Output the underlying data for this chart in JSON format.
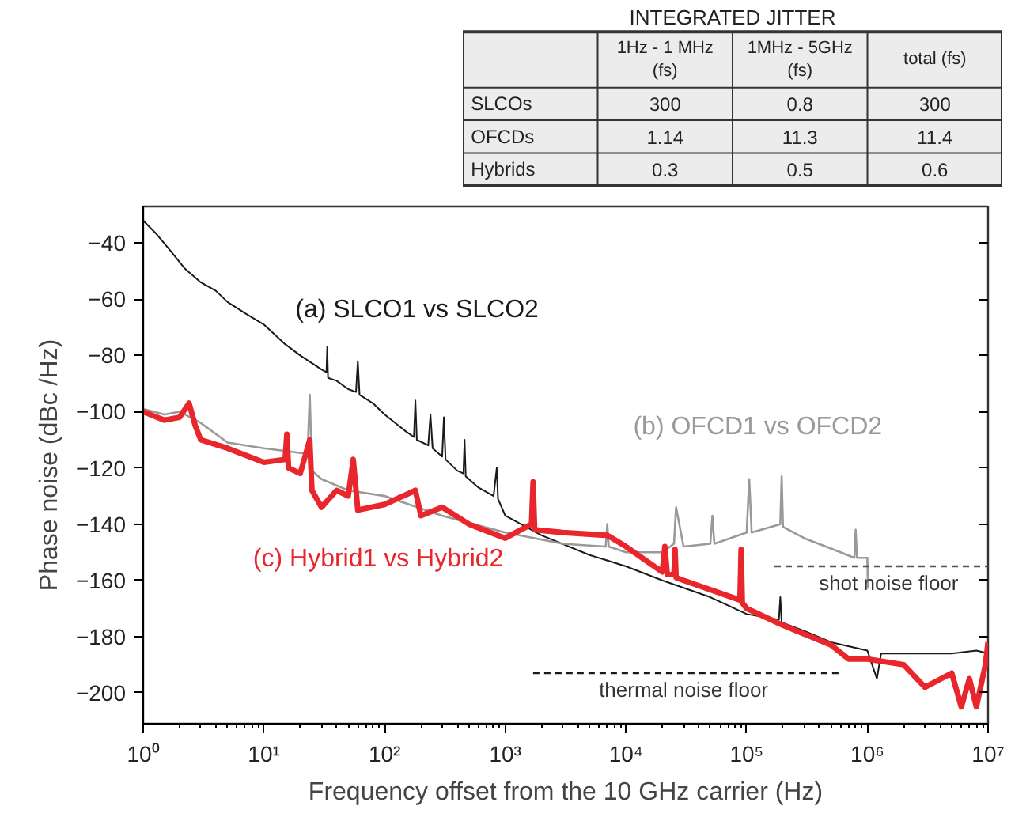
{
  "chart_data": [
    {
      "type": "line",
      "xlabel": "Frequency offset from the 10 GHz carrier (Hz)",
      "ylabel": "Phase noise (dBc /Hz)",
      "log": "x",
      "grid": false,
      "xlim": [
        1,
        10000000
      ],
      "ylim": [
        -211,
        -27
      ],
      "xticks": [
        {
          "value": 1,
          "label": "10⁰"
        },
        {
          "value": 10,
          "label": "10¹"
        },
        {
          "value": 100,
          "label": "10²"
        },
        {
          "value": 1000,
          "label": "10³"
        },
        {
          "value": 10000,
          "label": "10⁴"
        },
        {
          "value": 100000,
          "label": "10⁵"
        },
        {
          "value": 1000000,
          "label": "10⁶"
        },
        {
          "value": 10000000,
          "label": "10⁷"
        }
      ],
      "yticks": [
        -200,
        -180,
        -160,
        -140,
        -120,
        -100,
        -80,
        -60,
        -40
      ],
      "series": [
        {
          "name": "(a) SLCO1 vs SLCO2",
          "color": "#1a1a1a",
          "x": [
            1,
            1.3,
            1.7,
            2.2,
            3,
            4,
            5,
            7,
            10,
            15,
            20,
            30,
            33,
            33.5,
            34,
            40,
            50,
            58,
            60,
            62,
            80,
            100,
            150,
            175,
            180,
            185,
            230,
            240,
            250,
            300,
            310,
            320,
            400,
            450,
            460,
            470,
            600,
            800,
            850,
            870,
            1000,
            2000,
            5000,
            10000,
            20000,
            50000,
            100000,
            185000,
            190000,
            195000,
            300000,
            500000,
            1000000,
            1200000,
            1300000,
            1500000,
            2000000,
            3000000,
            5000000,
            8000000,
            10000000
          ],
          "values": [
            -32,
            -37,
            -43,
            -49,
            -54,
            -57,
            -61,
            -65,
            -69,
            -76,
            -80,
            -85,
            -86,
            -77,
            -88,
            -89,
            -92,
            -93,
            -82,
            -94,
            -97,
            -101,
            -107,
            -109,
            -96,
            -110,
            -112,
            -101,
            -113,
            -116,
            -102,
            -117,
            -121,
            -122,
            -110,
            -123,
            -127,
            -130,
            -120,
            -131,
            -137,
            -144,
            -151,
            -155,
            -160,
            -166,
            -172,
            -174,
            -166,
            -175,
            -178,
            -182,
            -185,
            -195,
            -186,
            -186,
            -186,
            -186,
            -186,
            -185,
            -186
          ]
        },
        {
          "name": "(b) OFCD1 vs OFCD2",
          "color": "#999999",
          "x": [
            1,
            1.5,
            2,
            3,
            5,
            10,
            23,
            24,
            25,
            30,
            50,
            100,
            300,
            1000,
            3000,
            6800,
            7000,
            7200,
            10000,
            20000,
            25000,
            26000,
            30000,
            50000,
            52000,
            54000,
            100000,
            105000,
            110000,
            190000,
            195000,
            200000,
            300000,
            600000,
            780000,
            800000,
            820000,
            1000000,
            1010000
          ],
          "values": [
            -99,
            -101,
            -100,
            -104,
            -111,
            -113,
            -115,
            -94,
            -121,
            -124,
            -128,
            -130,
            -137,
            -143,
            -147,
            -148,
            -140,
            -148,
            -150,
            -150,
            -147,
            -134,
            -148,
            -147,
            -137,
            -147,
            -143,
            -124,
            -143,
            -140,
            -123,
            -141,
            -145,
            -150,
            -152,
            -142,
            -152,
            -152,
            -163
          ]
        },
        {
          "name": "(c) Hybrid1 vs Hybrid2",
          "color": "#e8262b",
          "x": [
            1,
            1.5,
            2,
            2.4,
            2.7,
            3,
            5,
            10,
            15,
            15.5,
            16,
            20,
            24,
            25,
            30,
            40,
            50,
            55,
            60,
            100,
            180,
            200,
            300,
            500,
            1000,
            1650,
            1700,
            1750,
            3000,
            7000,
            10000,
            20000,
            21000,
            22000,
            25000,
            25500,
            26000,
            30000,
            88000,
            90000,
            92000,
            100000,
            200000,
            500000,
            700000,
            1000000,
            2000000,
            3000000,
            5000000,
            6000000,
            7000000,
            8000000,
            9500000,
            10000000
          ],
          "values": [
            -100,
            -103,
            -102,
            -97,
            -105,
            -110,
            -113,
            -118,
            -117,
            -108,
            -120,
            -122,
            -110,
            -128,
            -134,
            -128,
            -130,
            -117,
            -135,
            -133,
            -128,
            -137,
            -134,
            -140,
            -145,
            -140,
            -125,
            -142,
            -143,
            -144,
            -148,
            -157,
            -148,
            -158,
            -158,
            -149,
            -159,
            -160,
            -167,
            -149,
            -168,
            -170,
            -176,
            -183,
            -188,
            -188,
            -190,
            -198,
            -193,
            -205,
            -195,
            -205,
            -190,
            -182
          ]
        },
        {
          "color": "#555555",
          "line_style": "dashed",
          "x": [
            170000,
            10000000
          ],
          "values": [
            -155,
            -155
          ]
        },
        {
          "color": "#1a1a1a",
          "line_style": "dashed",
          "x": [
            1700,
            600000
          ],
          "values": [
            -193,
            -193
          ]
        }
      ],
      "annotations": [
        {
          "text": "shot noise floor",
          "x": 1500000,
          "y": -155
        },
        {
          "text": "thermal noise floor",
          "x": 30000,
          "y": -193
        }
      ]
    },
    {
      "type": "other",
      "title": "INTEGRATED JITTER",
      "categories": [
        "1Hz - 1 MHz\n(fs)",
        "1MHz - 5GHz\n(fs)",
        "total (fs)"
      ],
      "y_categories": [
        "SLCOs",
        "OFCDs",
        "Hybrids"
      ],
      "cell_labels": [
        [
          "300",
          "0.8",
          "300"
        ],
        [
          "1.14",
          "11.3",
          "11.4"
        ],
        [
          "0.3",
          "0.5",
          "0.6"
        ]
      ]
    }
  ]
}
